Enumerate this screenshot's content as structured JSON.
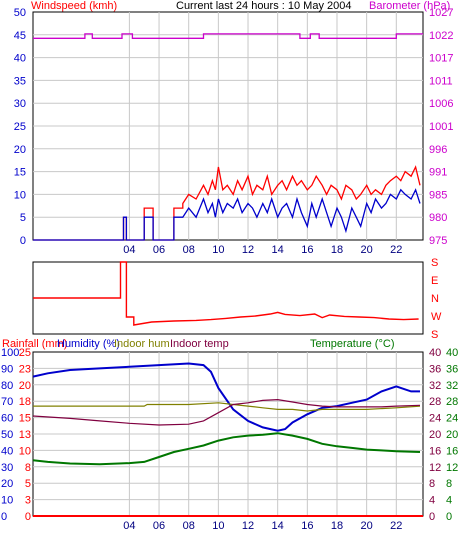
{
  "colors": {
    "wind_avg": "#0000cc",
    "wind_gust": "#ff0000",
    "barometer": "#cc00cc",
    "wind_dir": "#ff0000",
    "rainfall": "#ff0000",
    "humidity": "#0000cc",
    "indoor_hum": "#808000",
    "indoor_temp": "#800040",
    "temperature": "#007700",
    "grid": "#c8c8c8"
  },
  "chart_data": [
    {
      "type": "line",
      "title": "Current last 24 hours : 10 May 2004",
      "left_axis_label": "Windspeed (kmh)",
      "right_axis_label": "Barometer (hPa)",
      "x_ticks": [
        "04",
        "06",
        "08",
        "10",
        "12",
        "14",
        "16",
        "18",
        "20",
        "22"
      ],
      "x_tick_hours": [
        4,
        6,
        8,
        10,
        12,
        14,
        16,
        18,
        20,
        22
      ],
      "x_range": [
        -2.5,
        23.8
      ],
      "left_ticks": [
        "0",
        "5",
        "10",
        "15",
        "20",
        "25",
        "30",
        "35",
        "40",
        "45",
        "50"
      ],
      "right_ticks": [
        "975",
        "980",
        "985",
        "991",
        "996",
        "1001",
        "1006",
        "1011",
        "1017",
        "1022",
        "1027"
      ],
      "ylim_left": [
        0,
        50
      ],
      "ylim_right": [
        975,
        1027
      ],
      "series": [
        {
          "name": "Gust",
          "axis": "left",
          "x": [
            -2.5,
            3.6,
            3.6,
            3.8,
            3.8,
            5.0,
            5.0,
            5.6,
            5.6,
            7.0,
            7.0,
            7.6,
            7.6,
            8.0,
            8.5,
            9.0,
            9.3,
            9.6,
            9.8,
            10.0,
            10.3,
            10.6,
            11.0,
            11.3,
            11.6,
            12.0,
            12.3,
            12.6,
            13.0,
            13.3,
            13.6,
            14.0,
            14.3,
            14.6,
            15.0,
            15.3,
            15.6,
            16.0,
            16.3,
            16.6,
            17.0,
            17.3,
            17.6,
            18.0,
            18.3,
            18.6,
            19.0,
            19.3,
            19.6,
            20.0,
            20.3,
            20.6,
            21.0,
            21.3,
            21.6,
            22.0,
            22.3,
            22.6,
            23.0,
            23.3,
            23.6
          ],
          "y": [
            0,
            0,
            5,
            5,
            0,
            0,
            7,
            7,
            0,
            0,
            7,
            7,
            8,
            10,
            9,
            12,
            10,
            13,
            11,
            16,
            11,
            12,
            10,
            13,
            11,
            14,
            10,
            12,
            11,
            14,
            10,
            12,
            13,
            11,
            14,
            12,
            13,
            11,
            12,
            14,
            12,
            10,
            12,
            11,
            9,
            12,
            11,
            9,
            10,
            12,
            10,
            11,
            10,
            12,
            13,
            14,
            13,
            15,
            14,
            16,
            12
          ]
        },
        {
          "name": "Average",
          "axis": "left",
          "x": [
            -2.5,
            3.6,
            3.6,
            3.8,
            3.8,
            5.0,
            5.0,
            5.6,
            5.6,
            7.0,
            7.0,
            7.6,
            8.0,
            8.5,
            9.0,
            9.3,
            9.6,
            9.8,
            10.0,
            10.3,
            10.6,
            11.0,
            11.3,
            11.6,
            12.0,
            12.3,
            12.6,
            13.0,
            13.3,
            13.6,
            14.0,
            14.3,
            14.6,
            15.0,
            15.3,
            15.6,
            16.0,
            16.3,
            16.6,
            17.0,
            17.3,
            17.6,
            18.0,
            18.3,
            18.6,
            19.0,
            19.3,
            19.6,
            20.0,
            20.3,
            20.6,
            21.0,
            21.3,
            21.6,
            22.0,
            22.3,
            22.6,
            23.0,
            23.3,
            23.6
          ],
          "y": [
            0,
            0,
            5,
            5,
            0,
            0,
            5,
            5,
            0,
            0,
            5,
            5,
            7,
            5,
            9,
            6,
            8,
            5,
            9,
            6,
            8,
            7,
            9,
            6,
            8,
            7,
            5,
            8,
            6,
            9,
            5,
            7,
            8,
            5,
            9,
            6,
            3,
            8,
            5,
            9,
            6,
            3,
            7,
            5,
            2,
            7,
            5,
            3,
            8,
            6,
            9,
            7,
            8,
            10,
            9,
            11,
            10,
            9,
            11,
            8
          ]
        },
        {
          "name": "Barometer",
          "axis": "right",
          "x": [
            -2.5,
            1.0,
            1.0,
            1.5,
            1.5,
            3.5,
            3.5,
            4.2,
            4.2,
            9.0,
            9.0,
            15.5,
            15.5,
            16.2,
            16.2,
            16.8,
            16.8,
            22.0,
            22.0,
            23.8
          ],
          "y": [
            1021,
            1021,
            1022,
            1022,
            1021,
            1021,
            1022,
            1022,
            1021,
            1021,
            1022,
            1022,
            1021,
            1021,
            1022,
            1022,
            1021,
            1021,
            1022,
            1022
          ]
        }
      ]
    },
    {
      "type": "line",
      "axis_labels": [
        "S",
        "E",
        "N",
        "W",
        "S"
      ],
      "ylim": [
        0,
        360
      ],
      "x_range": [
        -2.5,
        23.8
      ],
      "series": [
        {
          "name": "Wind direction",
          "x": [
            -2.5,
            3.4,
            3.4,
            3.8,
            3.8,
            4.3,
            4.3,
            5.5,
            7.0,
            8.5,
            9.5,
            10.5,
            11.5,
            12.5,
            13.5,
            14.0,
            14.5,
            15.5,
            16.5,
            17.0,
            17.5,
            18.5,
            19.5,
            20.5,
            21.5,
            22.5,
            23.5
          ],
          "y": [
            180,
            180,
            360,
            360,
            85,
            85,
            45,
            60,
            65,
            68,
            72,
            78,
            85,
            90,
            100,
            108,
            98,
            92,
            100,
            82,
            95,
            88,
            85,
            82,
            75,
            72,
            75
          ]
        }
      ]
    },
    {
      "type": "line",
      "legend": [
        "Rainfall (mm)",
        "Humidity (%)",
        "Indoor hum",
        "Indoor temp",
        "Temperature (°C)"
      ],
      "x_ticks": [
        "04",
        "06",
        "08",
        "10",
        "12",
        "14",
        "16",
        "18",
        "20",
        "22"
      ],
      "x_tick_hours": [
        4,
        6,
        8,
        10,
        12,
        14,
        16,
        18,
        20,
        22
      ],
      "x_range": [
        -2.5,
        23.8
      ],
      "humidity_ticks": [
        "0",
        "10",
        "20",
        "30",
        "40",
        "50",
        "60",
        "70",
        "80",
        "90",
        "100"
      ],
      "rain_ticks": [
        "0",
        "3",
        "5",
        "8",
        "10",
        "13",
        "15",
        "18",
        "20",
        "23",
        "25"
      ],
      "temp_ticks": [
        "0",
        "4",
        "8",
        "12",
        "16",
        "20",
        "24",
        "28",
        "32",
        "36",
        "40"
      ],
      "ylim_humidity": [
        0,
        100
      ],
      "ylim_temperature": [
        0,
        40
      ],
      "series": [
        {
          "name": "Rainfall",
          "axis": "humidity",
          "x": [
            -2.5,
            23.8
          ],
          "y": [
            0,
            0
          ]
        },
        {
          "name": "Humidity",
          "axis": "humidity",
          "x": [
            -2.5,
            -1.5,
            0,
            2,
            4,
            6,
            8,
            9,
            9.5,
            10,
            11,
            12,
            13,
            14,
            14.5,
            15,
            16,
            17,
            18,
            19,
            20,
            21,
            22,
            23,
            23.6
          ],
          "y": [
            85,
            87,
            89,
            90,
            91,
            92,
            93,
            92,
            88,
            78,
            65,
            58,
            54,
            52,
            53,
            57,
            62,
            66,
            67,
            69,
            71,
            76,
            79,
            76,
            76
          ]
        },
        {
          "name": "Indoor hum",
          "axis": "humidity",
          "x": [
            -2.5,
            2,
            5,
            5.2,
            8,
            10,
            11,
            12,
            13,
            14,
            15,
            16,
            17,
            18,
            20,
            22,
            23.6
          ],
          "y": [
            67,
            67,
            67,
            68,
            68,
            69,
            68,
            67,
            66,
            65,
            65,
            64,
            65,
            65,
            65,
            66,
            67
          ]
        },
        {
          "name": "Indoor temp",
          "axis": "temperature",
          "x": [
            -2.5,
            0,
            2,
            4,
            6,
            8,
            9,
            10,
            11,
            12,
            13,
            14,
            15,
            16,
            17,
            18,
            19,
            20,
            21,
            22,
            23.6
          ],
          "y": [
            24.4,
            23.8,
            23.2,
            22.6,
            22.2,
            22.4,
            23.2,
            25.2,
            27.2,
            27.6,
            28.2,
            28.4,
            27.8,
            27.2,
            26.8,
            26.6,
            26.6,
            26.6,
            26.6,
            26.8,
            27.0
          ]
        },
        {
          "name": "Temperature",
          "axis": "temperature",
          "x": [
            -2.5,
            -1.5,
            0,
            2,
            4,
            5,
            6,
            7,
            8,
            9,
            10,
            11,
            12,
            13,
            14,
            15,
            16,
            17,
            18,
            19,
            20,
            21,
            22,
            23.6
          ],
          "y": [
            13.6,
            13.2,
            12.8,
            12.6,
            12.9,
            13.2,
            14.4,
            15.6,
            16.4,
            17.2,
            18.4,
            19.2,
            19.6,
            19.8,
            20.2,
            19.6,
            18.8,
            17.6,
            17.0,
            16.6,
            16.2,
            16.0,
            15.8,
            15.6
          ]
        }
      ]
    }
  ]
}
